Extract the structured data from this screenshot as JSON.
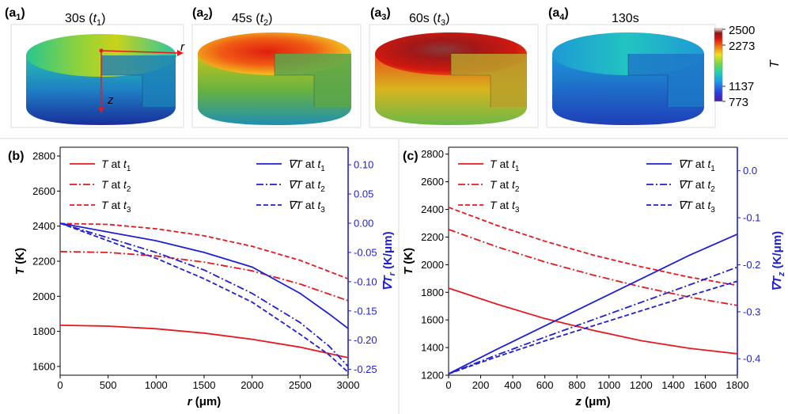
{
  "panels_top": [
    {
      "tag": "a",
      "sub": "1",
      "label": "30s (",
      "tvar": "t",
      "tsub": "1",
      "tail": ")"
    },
    {
      "tag": "a",
      "sub": "2",
      "label": "45s (",
      "tvar": "t",
      "tsub": "2",
      "tail": ")"
    },
    {
      "tag": "a",
      "sub": "3",
      "label": "60s (",
      "tvar": "t",
      "tsub": "3",
      "tail": ")"
    },
    {
      "tag": "a",
      "sub": "4",
      "label": "130s",
      "tvar": "",
      "tsub": "",
      "tail": ""
    }
  ],
  "axes_labels": {
    "r": "r",
    "z": "z"
  },
  "colorbar": {
    "title": "T",
    "ticks": [
      "2500",
      "2273",
      "1137",
      "773"
    ]
  },
  "colors": {
    "red": "#e8191e",
    "blue": "#1f1fd6",
    "axis_blue": "#1f1fd6"
  },
  "chart_data": [
    {
      "type": "line",
      "panel": "(b)",
      "xlabel": "r (μm)",
      "ylabel_left": "T (K)",
      "ylabel_right": "∇T_r (K/μm)",
      "xlim": [
        0,
        3000
      ],
      "ylim_left": [
        1550,
        2850
      ],
      "ylim_right": [
        -0.26,
        0.13
      ],
      "xticks": [
        0,
        500,
        1000,
        1500,
        2000,
        2500,
        3000
      ],
      "yticks_left": [
        1600,
        1800,
        2000,
        2200,
        2400,
        2600,
        2800
      ],
      "yticks_right": [
        -0.25,
        -0.2,
        -0.15,
        -0.1,
        -0.05,
        0.0,
        0.05,
        0.1
      ],
      "yticks_right_labels": [
        "-0.25",
        "-0.20",
        "-0.15",
        "-0.10",
        "-0.05",
        "0.00",
        "0.05",
        "0.10"
      ],
      "legend_left": [
        "T at t1",
        "T at t2",
        "T at t3"
      ],
      "legend_right": [
        "∇T at t1",
        "∇T at t2",
        "∇T at t3"
      ],
      "series": [
        {
          "name": "T at t1",
          "axis": "left",
          "style": "solid",
          "color": "red",
          "x": [
            0,
            500,
            1000,
            1500,
            2000,
            2500,
            3000
          ],
          "values": [
            1835,
            1830,
            1815,
            1790,
            1755,
            1710,
            1650
          ]
        },
        {
          "name": "T at t2",
          "axis": "left",
          "style": "dashdot",
          "color": "red",
          "x": [
            0,
            500,
            1000,
            1500,
            2000,
            2500,
            3000
          ],
          "values": [
            2255,
            2250,
            2230,
            2195,
            2145,
            2070,
            1975
          ]
        },
        {
          "name": "T at t3",
          "axis": "left",
          "style": "dashed",
          "color": "red",
          "x": [
            0,
            500,
            1000,
            1500,
            2000,
            2500,
            3000
          ],
          "values": [
            2415,
            2410,
            2385,
            2345,
            2285,
            2205,
            2100
          ]
        },
        {
          "name": "∇T at t1",
          "axis": "right",
          "style": "solid",
          "color": "blue",
          "x": [
            0,
            500,
            1000,
            1500,
            2000,
            2500,
            2800,
            3000
          ],
          "values": [
            0.0,
            -0.015,
            -0.03,
            -0.05,
            -0.075,
            -0.12,
            -0.155,
            -0.18
          ]
        },
        {
          "name": "∇T at t2",
          "axis": "right",
          "style": "dashdot",
          "color": "blue",
          "x": [
            0,
            500,
            1000,
            1500,
            2000,
            2500,
            2800,
            3000
          ],
          "values": [
            0.0,
            -0.025,
            -0.05,
            -0.08,
            -0.12,
            -0.17,
            -0.21,
            -0.245
          ]
        },
        {
          "name": "∇T at t3",
          "axis": "right",
          "style": "dashed",
          "color": "blue",
          "x": [
            0,
            500,
            1000,
            1500,
            2000,
            2500,
            2800,
            3000
          ],
          "values": [
            0.0,
            -0.03,
            -0.06,
            -0.095,
            -0.135,
            -0.19,
            -0.225,
            -0.255
          ]
        }
      ]
    },
    {
      "type": "line",
      "panel": "(c)",
      "xlabel": "z (μm)",
      "ylabel_left": "T (K)",
      "ylabel_right": "∇T_z (K/μm)",
      "xlim": [
        0,
        1800
      ],
      "ylim_left": [
        1200,
        2850
      ],
      "ylim_right": [
        -0.435,
        0.05
      ],
      "xticks": [
        0,
        200,
        400,
        600,
        800,
        1000,
        1200,
        1400,
        1600,
        1800
      ],
      "yticks_left": [
        1200,
        1400,
        1600,
        1800,
        2000,
        2200,
        2400,
        2600,
        2800
      ],
      "yticks_right": [
        -0.4,
        -0.3,
        -0.2,
        -0.1,
        0.0
      ],
      "yticks_right_labels": [
        "-0.4",
        "-0.3",
        "-0.2",
        "-0.1",
        "0.0"
      ],
      "legend_left": [
        "T at t1",
        "T at t2",
        "T at t3"
      ],
      "legend_right": [
        "∇T at t1",
        "∇T at t2",
        "∇T at t3"
      ],
      "series": [
        {
          "name": "T at t1",
          "axis": "left",
          "style": "solid",
          "color": "red",
          "x": [
            0,
            300,
            600,
            900,
            1200,
            1500,
            1800
          ],
          "values": [
            1830,
            1715,
            1610,
            1525,
            1450,
            1395,
            1355
          ]
        },
        {
          "name": "T at t2",
          "axis": "left",
          "style": "dashdot",
          "color": "red",
          "x": [
            0,
            300,
            600,
            900,
            1200,
            1500,
            1800
          ],
          "values": [
            2255,
            2130,
            2020,
            1925,
            1840,
            1765,
            1705
          ]
        },
        {
          "name": "T at t3",
          "axis": "left",
          "style": "dashed",
          "color": "red",
          "x": [
            0,
            300,
            600,
            900,
            1200,
            1500,
            1800
          ],
          "values": [
            2415,
            2285,
            2170,
            2070,
            1985,
            1910,
            1850
          ]
        },
        {
          "name": "∇T at t1",
          "axis": "right",
          "style": "solid",
          "color": "blue",
          "x": [
            0,
            300,
            600,
            900,
            1200,
            1500,
            1800
          ],
          "values": [
            -0.432,
            -0.38,
            -0.33,
            -0.28,
            -0.23,
            -0.18,
            -0.135
          ]
        },
        {
          "name": "∇T at t2",
          "axis": "right",
          "style": "dashdot",
          "color": "blue",
          "x": [
            0,
            300,
            600,
            900,
            1200,
            1500,
            1800
          ],
          "values": [
            -0.432,
            -0.392,
            -0.354,
            -0.317,
            -0.28,
            -0.243,
            -0.205
          ]
        },
        {
          "name": "∇T at t3",
          "axis": "right",
          "style": "dashed",
          "color": "blue",
          "x": [
            0,
            300,
            600,
            900,
            1200,
            1500,
            1800
          ],
          "values": [
            -0.432,
            -0.396,
            -0.362,
            -0.33,
            -0.298,
            -0.266,
            -0.235
          ]
        }
      ]
    }
  ]
}
